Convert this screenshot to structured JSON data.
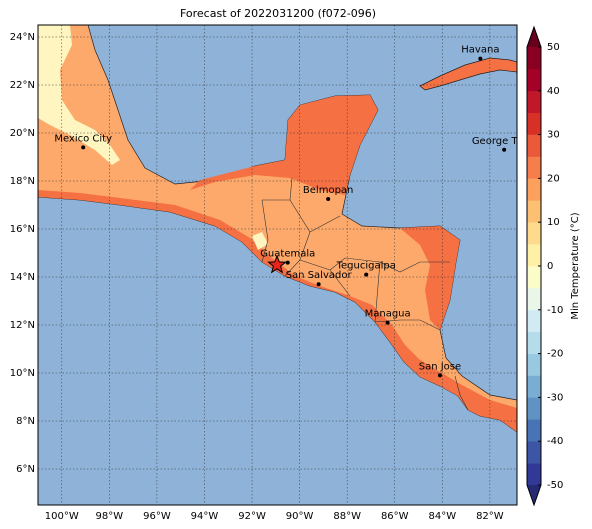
{
  "map": {
    "title": "Forecast of 2022031200 (f072-096)",
    "xlim": [
      -101.0,
      -80.86
    ],
    "ylim": [
      4.5,
      24.5
    ],
    "xticks": [
      {
        "value": -100,
        "label": "100°W"
      },
      {
        "value": -98,
        "label": "98°W"
      },
      {
        "value": -96,
        "label": "96°W"
      },
      {
        "value": -94,
        "label": "94°W"
      },
      {
        "value": -92,
        "label": "92°W"
      },
      {
        "value": -90,
        "label": "90°W"
      },
      {
        "value": -88,
        "label": "88°W"
      },
      {
        "value": -86,
        "label": "86°W"
      },
      {
        "value": -84,
        "label": "84°W"
      },
      {
        "value": -82,
        "label": "82°W"
      }
    ],
    "yticks": [
      {
        "value": 6,
        "label": "6°N"
      },
      {
        "value": 8,
        "label": "8°N"
      },
      {
        "value": 10,
        "label": "10°N"
      },
      {
        "value": 12,
        "label": "12°N"
      },
      {
        "value": 14,
        "label": "14°N"
      },
      {
        "value": 16,
        "label": "16°N"
      },
      {
        "value": 18,
        "label": "18°N"
      },
      {
        "value": 20,
        "label": "20°N"
      },
      {
        "value": 22,
        "label": "22°N"
      },
      {
        "value": 24,
        "label": "24°N"
      }
    ],
    "grid": true,
    "cities": [
      {
        "name": "Havana",
        "lon": -82.4,
        "lat": 23.1
      },
      {
        "name": "Mexico City",
        "lon": -99.1,
        "lat": 19.4
      },
      {
        "name": "George Town",
        "lon": -81.4,
        "lat": 19.3
      },
      {
        "name": "Belmopan",
        "lon": -88.8,
        "lat": 17.25
      },
      {
        "name": "Guatemala",
        "lon": -90.5,
        "lat": 14.6
      },
      {
        "name": "Tegucigalpa",
        "lon": -87.2,
        "lat": 14.1
      },
      {
        "name": "San Salvador",
        "lon": -89.2,
        "lat": 13.7
      },
      {
        "name": "Managua",
        "lon": -86.3,
        "lat": 12.1
      },
      {
        "name": "San Jose",
        "lon": -84.1,
        "lat": 9.9
      }
    ],
    "star": {
      "lon": -90.95,
      "lat": 14.5,
      "color": "#e8231b"
    },
    "colorbar": {
      "label": "Min Temperature (°C)",
      "lim": [
        -50,
        50
      ],
      "ticks": [
        -50,
        -40,
        -30,
        -20,
        -10,
        0,
        10,
        20,
        30,
        40,
        50
      ],
      "colors": [
        "#323896",
        "#3d55a5",
        "#4874b5",
        "#5f93c4",
        "#79aed2",
        "#98c9e0",
        "#b5dcea",
        "#d2ebf3",
        "#e9f6e8",
        "#fbfdc8",
        "#fff0a8",
        "#fedb8c",
        "#fdbf71",
        "#fca05d",
        "#f67e4b",
        "#ea5a3a",
        "#d73127",
        "#c0182a",
        "#a50026",
        "#8a0023"
      ],
      "under_color": "#262a75",
      "over_color": "#67001f"
    }
  }
}
